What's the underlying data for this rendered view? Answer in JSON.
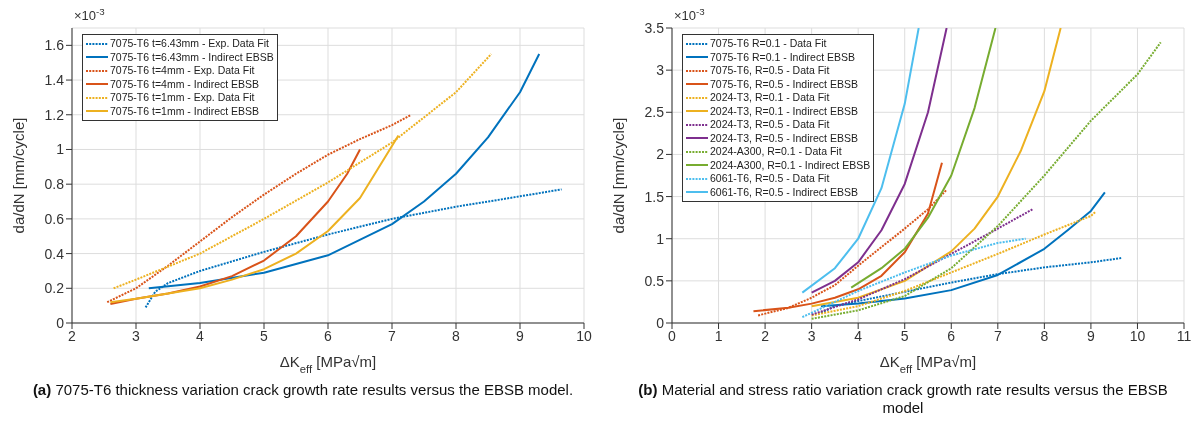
{
  "chart_data": [
    {
      "type": "line",
      "title": "(a) 7075-T6 thickness variation crack growth rate results versus the EBSB model.",
      "xlabel": "ΔK$_{eff}$ [MPa√m]",
      "ylabel": "da/dN [mm/cycle]",
      "annotations": [
        "×10$^{-3}$"
      ],
      "xlim": [
        2,
        10
      ],
      "xticks": [
        2,
        3,
        4,
        5,
        6,
        7,
        8,
        9,
        10
      ],
      "ylim": [
        0,
        1.7
      ],
      "yticks": [
        0,
        0.2,
        0.4,
        0.6,
        0.8,
        1,
        1.2,
        1.4,
        1.6
      ],
      "grid": true,
      "legend": "top left",
      "series": [
        {
          "name": "7075-T6 t=6.43mm - Exp. Data Fit",
          "color": "#0072bd",
          "line_style": "dotted",
          "x": [
            3.15,
            3.3,
            3.5,
            4,
            5,
            6,
            7,
            8,
            9,
            9.65
          ],
          "values": [
            0.09,
            0.18,
            0.23,
            0.3,
            0.41,
            0.51,
            0.6,
            0.67,
            0.73,
            0.77
          ]
        },
        {
          "name": "7075-T6 t=6.43mm - Indirect EBSB",
          "color": "#0072bd",
          "line_style": "solid",
          "x": [
            3.2,
            4,
            5,
            6,
            7,
            7.5,
            8,
            8.5,
            9,
            9.3
          ],
          "values": [
            0.2,
            0.23,
            0.29,
            0.39,
            0.57,
            0.7,
            0.86,
            1.07,
            1.33,
            1.55
          ]
        },
        {
          "name": "7075-T6 t=4mm - Exp. Data Fit",
          "color": "#d95319",
          "line_style": "dotted",
          "x": [
            2.55,
            3,
            3.5,
            4,
            4.5,
            5,
            5.5,
            6,
            6.5,
            7,
            7.3
          ],
          "values": [
            0.12,
            0.2,
            0.33,
            0.47,
            0.61,
            0.74,
            0.86,
            0.97,
            1.06,
            1.14,
            1.2
          ]
        },
        {
          "name": "7075-T6 t=4mm - Indirect EBSB",
          "color": "#d95319",
          "line_style": "solid",
          "x": [
            2.6,
            3,
            3.5,
            4,
            4.5,
            5,
            5.5,
            6,
            6.3,
            6.5
          ],
          "values": [
            0.11,
            0.14,
            0.17,
            0.21,
            0.27,
            0.36,
            0.5,
            0.7,
            0.86,
            1.0
          ]
        },
        {
          "name": "7075-T6 t=1mm - Exp. Data Fit",
          "color": "#edb120",
          "line_style": "dotted",
          "x": [
            2.65,
            3,
            4,
            5,
            6,
            7,
            8,
            8.55
          ],
          "values": [
            0.2,
            0.25,
            0.4,
            0.6,
            0.81,
            1.04,
            1.33,
            1.55
          ]
        },
        {
          "name": "7075-T6 t=1mm - Indirect EBSB",
          "color": "#edb120",
          "line_style": "solid",
          "x": [
            2.6,
            3,
            3.5,
            4,
            4.5,
            5,
            5.5,
            6,
            6.5,
            7.1
          ],
          "values": [
            0.12,
            0.14,
            0.17,
            0.2,
            0.25,
            0.31,
            0.4,
            0.53,
            0.72,
            1.08
          ]
        }
      ]
    },
    {
      "type": "line",
      "title": "(b) Material and stress ratio variation crack growth rate results versus the EBSB model",
      "xlabel": "ΔK$_{eff}$  [MPa√m]",
      "ylabel": "da/dN [mm/cycle]",
      "annotations": [
        "×10$^{-3}$"
      ],
      "xlim": [
        0,
        11
      ],
      "xticks": [
        0,
        1,
        2,
        3,
        4,
        5,
        6,
        7,
        8,
        9,
        10,
        11
      ],
      "ylim": [
        0,
        3.5
      ],
      "yticks": [
        0,
        0.5,
        1,
        1.5,
        2,
        2.5,
        3,
        3.5
      ],
      "grid": true,
      "legend": "top left",
      "series": [
        {
          "name": "7075-T6 R=0.1 - Data Fit",
          "color": "#0072bd",
          "line_style": "dotted",
          "x": [
            3.2,
            3.5,
            4,
            5,
            6,
            7,
            8,
            9,
            9.65
          ],
          "values": [
            0.12,
            0.2,
            0.26,
            0.37,
            0.48,
            0.58,
            0.66,
            0.72,
            0.77
          ]
        },
        {
          "name": "7075-T6 R=0.1 - Indirect EBSB",
          "color": "#0072bd",
          "line_style": "solid",
          "x": [
            3.2,
            4,
            5,
            6,
            7,
            8,
            8.5,
            9,
            9.3
          ],
          "values": [
            0.2,
            0.23,
            0.29,
            0.39,
            0.57,
            0.88,
            1.1,
            1.33,
            1.55
          ]
        },
        {
          "name": "7075-T6, R=0.5 - Data Fit",
          "color": "#d95319",
          "line_style": "dotted",
          "x": [
            1.85,
            2.5,
            3,
            3.5,
            4,
            4.5,
            5,
            5.5,
            5.9
          ],
          "values": [
            0.09,
            0.18,
            0.3,
            0.45,
            0.68,
            0.9,
            1.12,
            1.35,
            1.58
          ]
        },
        {
          "name": "7075-T6, R=0.5 - Indirect EBSB",
          "color": "#d95319",
          "line_style": "solid",
          "x": [
            1.75,
            2.5,
            3,
            3.5,
            4,
            4.5,
            5,
            5.5,
            5.8
          ],
          "values": [
            0.14,
            0.18,
            0.23,
            0.3,
            0.4,
            0.56,
            0.84,
            1.3,
            1.9
          ]
        },
        {
          "name": "2024-T3, R=0.1 - Data Fit",
          "color": "#edb120",
          "line_style": "dotted",
          "x": [
            3,
            4,
            5,
            6,
            7,
            8,
            9,
            9.1
          ],
          "values": [
            0.09,
            0.2,
            0.38,
            0.6,
            0.82,
            1.05,
            1.27,
            1.32
          ]
        },
        {
          "name": "2024-T3, R=0.1 - Indirect EBSB",
          "color": "#edb120",
          "line_style": "solid",
          "x": [
            3,
            4,
            5,
            6,
            6.5,
            7,
            7.5,
            8,
            8.35
          ],
          "values": [
            0.2,
            0.3,
            0.5,
            0.85,
            1.12,
            1.5,
            2.05,
            2.75,
            3.5
          ]
        },
        {
          "name": "2024-T3, R=0.5 - Data Fit",
          "color": "#7e2f8e",
          "line_style": "dotted",
          "x": [
            3,
            4,
            5,
            6,
            7,
            7.75
          ],
          "values": [
            0.1,
            0.28,
            0.52,
            0.82,
            1.12,
            1.35
          ]
        },
        {
          "name": "2024-T3, R=0.5 - Indirect EBSB",
          "color": "#7e2f8e",
          "line_style": "solid",
          "x": [
            3,
            3.5,
            4,
            4.5,
            5,
            5.5,
            5.9
          ],
          "values": [
            0.36,
            0.5,
            0.72,
            1.1,
            1.65,
            2.5,
            3.5
          ]
        },
        {
          "name": "2024-A300, R=0.1 - Data Fit",
          "color": "#77ac30",
          "line_style": "dotted",
          "x": [
            3,
            4,
            5,
            6,
            7,
            8,
            9,
            10,
            10.5
          ],
          "values": [
            0.05,
            0.15,
            0.32,
            0.65,
            1.15,
            1.75,
            2.4,
            2.95,
            3.33
          ]
        },
        {
          "name": "2024-A300, R=0.1 - Indirect EBSB",
          "color": "#77ac30",
          "line_style": "solid",
          "x": [
            3.85,
            4.5,
            5,
            5.5,
            6,
            6.5,
            6.95
          ],
          "values": [
            0.42,
            0.65,
            0.88,
            1.25,
            1.75,
            2.55,
            3.5
          ]
        },
        {
          "name": "6061-T6, R=0.5 - Data Fit",
          "color": "#4dbeee",
          "line_style": "dotted",
          "x": [
            2.8,
            3.5,
            4,
            5,
            6,
            7,
            7.6
          ],
          "values": [
            0.07,
            0.25,
            0.38,
            0.6,
            0.8,
            0.95,
            1.0
          ]
        },
        {
          "name": "6061-T6, R=0.5 - Indirect EBSB",
          "color": "#4dbeee",
          "line_style": "solid",
          "x": [
            2.8,
            3.5,
            4,
            4.5,
            5,
            5.3
          ],
          "values": [
            0.36,
            0.65,
            1.0,
            1.6,
            2.6,
            3.5
          ]
        }
      ]
    }
  ]
}
